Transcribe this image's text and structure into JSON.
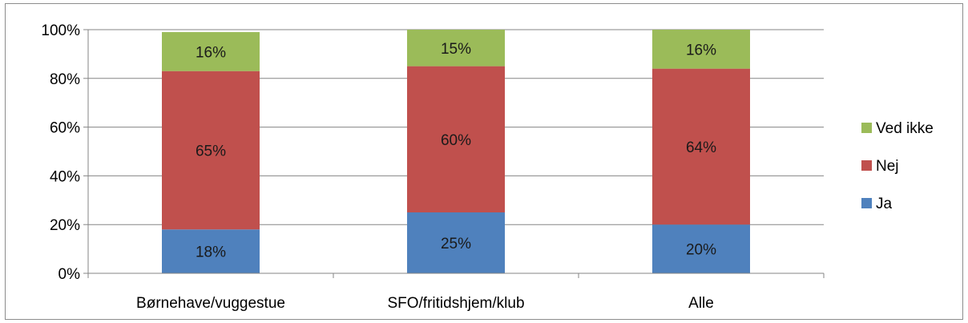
{
  "chart_data": {
    "type": "bar",
    "stacked": true,
    "categories": [
      "Børnehave/vuggestue",
      "SFO/fritidshjem/klub",
      "Alle"
    ],
    "series": [
      {
        "name": "Ja",
        "color": "#4f81bd",
        "values": [
          18,
          25,
          20
        ],
        "labels": [
          "18%",
          "25%",
          "20%"
        ]
      },
      {
        "name": "Nej",
        "color": "#c0504d",
        "values": [
          65,
          60,
          64
        ],
        "labels": [
          "65%",
          "60%",
          "64%"
        ]
      },
      {
        "name": "Ved ikke",
        "color": "#9bbb59",
        "values": [
          16,
          15,
          16
        ],
        "labels": [
          "16%",
          "15%",
          "16%"
        ]
      }
    ],
    "ylim": [
      0,
      100
    ],
    "yticks": [
      "0%",
      "20%",
      "40%",
      "60%",
      "80%",
      "100%"
    ],
    "ytick_values": [
      0,
      20,
      40,
      60,
      80,
      100
    ],
    "grid": true,
    "legend_position": "right",
    "legend_order": [
      "Ved ikke",
      "Nej",
      "Ja"
    ],
    "title": "",
    "xlabel": "",
    "ylabel": ""
  }
}
